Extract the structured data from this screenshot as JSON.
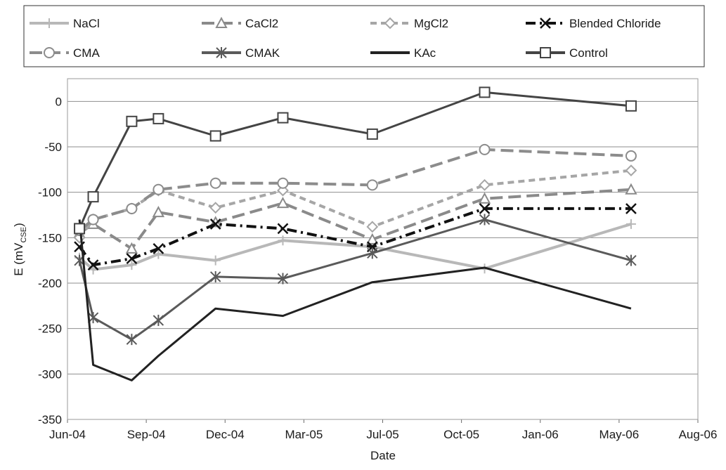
{
  "chart_data": {
    "type": "line",
    "xlabel": "Date",
    "ylabel": "E (mV",
    "ylabel_subscript": "CSE",
    "ylabel_close": ")",
    "ylim": [
      -350,
      25
    ],
    "yticks": [
      0,
      -50,
      -100,
      -150,
      -200,
      -250,
      -300,
      -350
    ],
    "x_ticks": [
      {
        "date": "2004-06-01",
        "label": "Jun-04"
      },
      {
        "date": "2004-09-01",
        "label": "Sep-04"
      },
      {
        "date": "2004-12-01",
        "label": "Dec-04"
      },
      {
        "date": "2005-03-01",
        "label": "Mar-05"
      },
      {
        "date": "2005-07-01",
        "label": "Jul-05"
      },
      {
        "date": "2005-10-01",
        "label": "Oct-05"
      },
      {
        "date": "2006-01-01",
        "label": "Jan-06"
      },
      {
        "date": "2006-05-01",
        "label": "May-06"
      },
      {
        "date": "2006-08-01",
        "label": "Aug-06"
      }
    ],
    "grid": "horizontal",
    "legend_position": "top",
    "series": [
      {
        "name": "NaCl",
        "color": "#b8b8b8",
        "dash": "solid",
        "marker": "plus",
        "x": [
          "2004-06-15",
          "2004-07-01",
          "2004-08-15",
          "2004-09-15",
          "2004-11-20",
          "2005-02-05",
          "2005-06-15",
          "2005-10-28",
          "2006-05-15"
        ],
        "y": [
          -172,
          -185,
          -180,
          -168,
          -175,
          -153,
          -160,
          -184,
          -135
        ]
      },
      {
        "name": "CaCl2",
        "color": "#8a8a8a",
        "dash": "longdash",
        "marker": "triangle",
        "x": [
          "2004-06-15",
          "2004-07-01",
          "2004-08-15",
          "2004-09-15",
          "2004-11-20",
          "2005-02-05",
          "2005-06-15",
          "2005-10-28",
          "2006-05-15"
        ],
        "y": [
          -145,
          -135,
          -162,
          -122,
          -133,
          -112,
          -152,
          -107,
          -97
        ]
      },
      {
        "name": "MgCl2",
        "color": "#a6a6a6",
        "dash": "dash",
        "marker": "diamond",
        "x": [
          "2004-06-15",
          "2004-07-01",
          "2004-08-15",
          "2004-09-15",
          "2004-11-20",
          "2005-02-05",
          "2005-06-15",
          "2005-10-28",
          "2006-05-15"
        ],
        "y": [
          -150,
          -130,
          -118,
          -98,
          -117,
          -98,
          -138,
          -92,
          -76
        ]
      },
      {
        "name": "Blended Chloride",
        "color": "#111111",
        "dash": "dashdot",
        "marker": "x",
        "x": [
          "2004-06-15",
          "2004-07-01",
          "2004-08-15",
          "2004-09-15",
          "2004-11-20",
          "2005-02-05",
          "2005-06-15",
          "2005-10-28",
          "2006-05-15"
        ],
        "y": [
          -160,
          -180,
          -173,
          -162,
          -135,
          -140,
          -160,
          -118,
          -118
        ]
      },
      {
        "name": "CMA",
        "color": "#8c8c8c",
        "dash": "longdash",
        "marker": "circle",
        "x": [
          "2004-06-15",
          "2004-07-01",
          "2004-08-15",
          "2004-09-15",
          "2004-11-20",
          "2005-02-05",
          "2005-06-15",
          "2005-10-28",
          "2006-05-15"
        ],
        "y": [
          -142,
          -130,
          -118,
          -97,
          -90,
          -90,
          -92,
          -53,
          -60
        ]
      },
      {
        "name": "CMAK",
        "color": "#5a5a5a",
        "dash": "solid",
        "marker": "asterisk",
        "x": [
          "2004-06-15",
          "2004-07-01",
          "2004-08-15",
          "2004-09-15",
          "2004-11-20",
          "2005-02-05",
          "2005-06-15",
          "2005-10-28",
          "2006-05-15"
        ],
        "y": [
          -175,
          -238,
          -262,
          -241,
          -193,
          -195,
          -167,
          -130,
          -175
        ]
      },
      {
        "name": "KAc",
        "color": "#222222",
        "dash": "solid",
        "marker": "none",
        "x": [
          "2004-06-15",
          "2004-07-01",
          "2004-08-15",
          "2004-09-15",
          "2004-11-20",
          "2005-02-05",
          "2005-06-15",
          "2005-10-28",
          "2006-05-15"
        ],
        "y": [
          -130,
          -290,
          -307,
          -280,
          -228,
          -236,
          -199,
          -183,
          -228
        ]
      },
      {
        "name": "Control",
        "color": "#444444",
        "dash": "solid",
        "marker": "square",
        "x": [
          "2004-06-15",
          "2004-07-01",
          "2004-08-15",
          "2004-09-15",
          "2004-11-20",
          "2005-02-05",
          "2005-06-15",
          "2005-10-28",
          "2006-05-15"
        ],
        "y": [
          -140,
          -105,
          -22,
          -19,
          -38,
          -18,
          -36,
          10,
          -5
        ]
      }
    ]
  }
}
